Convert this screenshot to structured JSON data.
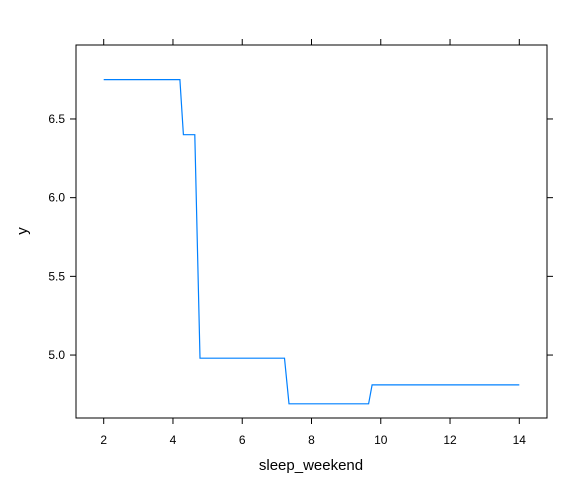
{
  "chart_data": {
    "type": "line",
    "title": "",
    "xlabel": "sleep_weekend",
    "ylabel": "y",
    "xlim": [
      1.2,
      14.8
    ],
    "ylim": [
      4.6,
      6.97
    ],
    "x_ticks": [
      2,
      4,
      6,
      8,
      10,
      12,
      14
    ],
    "x_tick_labels": [
      "2",
      "4",
      "6",
      "8",
      "10",
      "12",
      "14"
    ],
    "y_ticks": [
      5.0,
      5.5,
      6.0,
      6.5
    ],
    "y_tick_labels": [
      "5.0",
      "5.5",
      "6.0",
      "6.5"
    ],
    "grid": false,
    "line_color": "#0080ff",
    "series": [
      {
        "x": [
          2.0,
          4.2,
          4.3,
          4.63,
          4.78,
          7.22,
          7.35,
          9.65,
          9.75,
          14.0
        ],
        "y": [
          6.75,
          6.75,
          6.4,
          6.4,
          4.98,
          4.98,
          4.69,
          4.69,
          4.81,
          4.81
        ]
      }
    ]
  }
}
